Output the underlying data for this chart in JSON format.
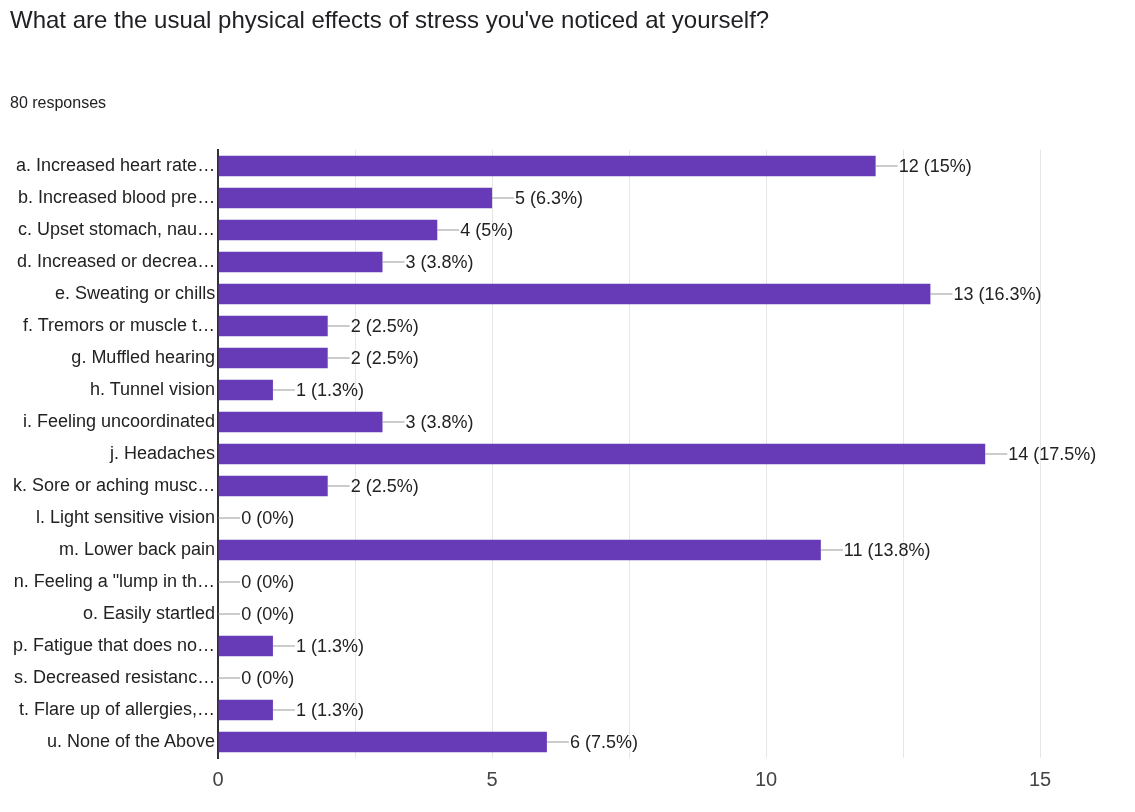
{
  "chart_data": {
    "type": "bar",
    "orientation": "horizontal",
    "title": "What are the usual physical effects of stress you've noticed at yourself?",
    "subtitle": "80 responses",
    "categories": [
      "a. Increased heart rate…",
      "b. Increased blood pre…",
      "c. Upset stomach, nau…",
      "d. Increased or decrea…",
      "e. Sweating or chills",
      "f. Tremors or muscle t…",
      "g. Muffled hearing",
      "h. Tunnel vision",
      "i. Feeling uncoordinated",
      "j. Headaches",
      "k. Sore or aching musc…",
      "l. Light sensitive vision",
      "m. Lower back pain",
      "n. Feeling a \"lump in th…",
      "o. Easily startled",
      "p. Fatigue that does no…",
      "s. Decreased resistanc…",
      "t. Flare up of allergies,…",
      "u. None of the Above"
    ],
    "values": [
      12,
      5,
      4,
      3,
      13,
      2,
      2,
      1,
      3,
      14,
      2,
      0,
      11,
      0,
      0,
      1,
      0,
      1,
      6
    ],
    "value_labels": [
      "12 (15%)",
      "5 (6.3%)",
      "4 (5%)",
      "3 (3.8%)",
      "13 (16.3%)",
      "2 (2.5%)",
      "2 (2.5%)",
      "1 (1.3%)",
      "3 (3.8%)",
      "14 (17.5%)",
      "2 (2.5%)",
      "0 (0%)",
      "11 (13.8%)",
      "0 (0%)",
      "0 (0%)",
      "1 (1.3%)",
      "0 (0%)",
      "1 (1.3%)",
      "6 (7.5%)"
    ],
    "color": "#673ab7",
    "xlim": [
      0,
      15
    ],
    "xticks": [
      0,
      {
        "value": 2.5,
        "label": null
      },
      5,
      {
        "value": 7.5,
        "label": null
      },
      10,
      {
        "value": 12.5,
        "label": null
      },
      15
    ],
    "grid": "x"
  }
}
